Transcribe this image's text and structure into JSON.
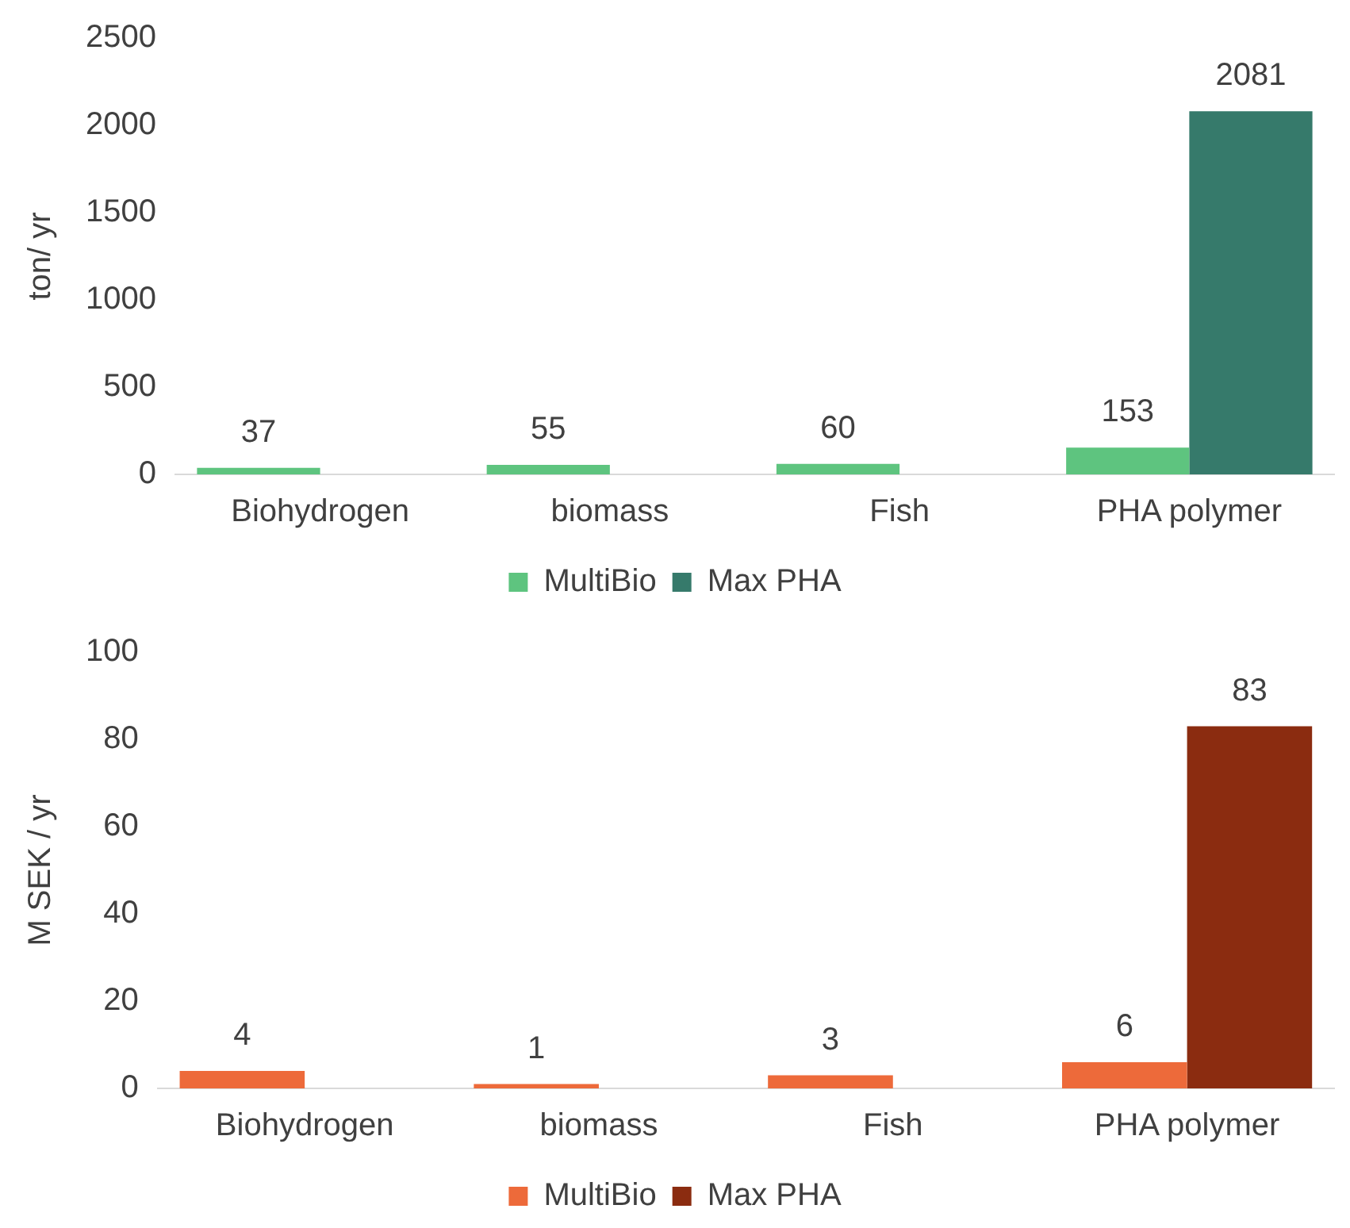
{
  "chart_data": [
    {
      "type": "bar",
      "ylabel": "ton/ yr",
      "categories": [
        "Biohydrogen",
        "biomass",
        "Fish",
        "PHA polymer"
      ],
      "series": [
        {
          "name": "MultiBio",
          "color": "#5ec47f",
          "values": [
            37,
            55,
            60,
            153
          ]
        },
        {
          "name": "Max PHA",
          "color": "#367a6b",
          "values": [
            null,
            null,
            null,
            2081
          ]
        }
      ],
      "ylim": [
        0,
        2500
      ],
      "yticks": [
        0,
        500,
        1000,
        1500,
        2000,
        2500
      ],
      "grid": false,
      "legend": "bottom",
      "data_labels": true
    },
    {
      "type": "bar",
      "ylabel": "M SEK / yr",
      "categories": [
        "Biohydrogen",
        "biomass",
        "Fish",
        "PHA polymer"
      ],
      "series": [
        {
          "name": "MultiBio",
          "color": "#ed6a3a",
          "values": [
            4,
            1,
            3,
            6
          ]
        },
        {
          "name": "Max PHA",
          "color": "#8b2c10",
          "values": [
            null,
            null,
            null,
            83
          ]
        }
      ],
      "ylim": [
        0,
        100
      ],
      "yticks": [
        0,
        20,
        40,
        60,
        80,
        100
      ],
      "grid": false,
      "legend": "bottom",
      "data_labels": true
    }
  ]
}
